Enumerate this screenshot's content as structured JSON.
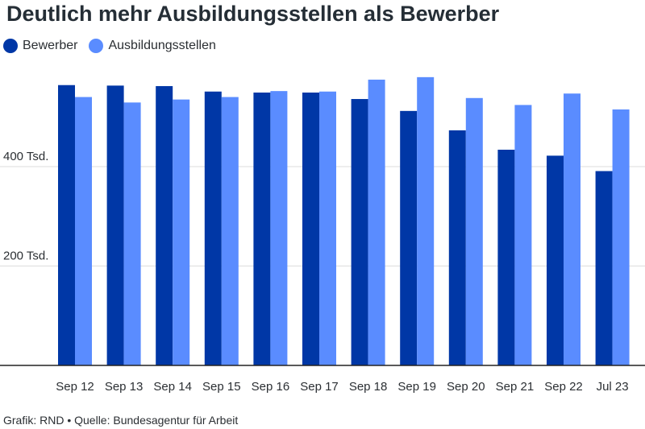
{
  "title": "Deutlich mehr Ausbildungsstellen als Bewerber",
  "footer": "Grafik: RND • Quelle: Bundesagentur für Arbeit",
  "colors": {
    "Bewerber": "#0037a6",
    "Ausbildungsstellen": "#5a8cff",
    "grid": "#dcdcdc",
    "axis": "#222222"
  },
  "chart_data": {
    "type": "bar",
    "title": "Deutlich mehr Ausbildungsstellen als Bewerber",
    "xlabel": "",
    "ylabel": "",
    "ylim": [
      0,
      600
    ],
    "y_ticks": [
      {
        "value": 200,
        "label": "200 Tsd."
      },
      {
        "value": 400,
        "label": "400 Tsd."
      }
    ],
    "grid": true,
    "legend_position": "top-left",
    "categories": [
      "Sep 12",
      "Sep 13",
      "Sep 14",
      "Sep 15",
      "Sep 16",
      "Sep 17",
      "Sep 18",
      "Sep 19",
      "Sep 20",
      "Sep 21",
      "Sep 22",
      "Jul 23"
    ],
    "series": [
      {
        "name": "Bewerber",
        "values": [
          564,
          563,
          562,
          551,
          549,
          549,
          536,
          512,
          473,
          434,
          422,
          391
        ]
      },
      {
        "name": "Ausbildungsstellen",
        "values": [
          540,
          529,
          535,
          540,
          552,
          551,
          575,
          580,
          538,
          524,
          547,
          515
        ]
      }
    ]
  }
}
